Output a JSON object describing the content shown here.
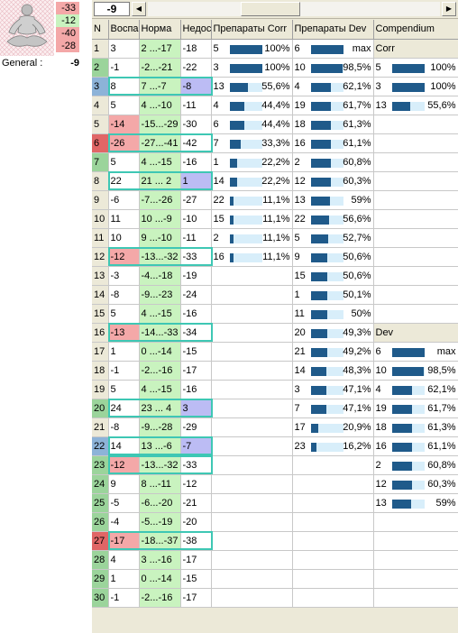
{
  "left_panel": {
    "scores": [
      "-33",
      "-12",
      "-40",
      "-28"
    ],
    "general_label": "General :",
    "general_value": "-9"
  },
  "toolbar": {
    "value": "-9",
    "scroll_position": 0.4
  },
  "columns": [
    "N",
    "Воспа",
    "Норма",
    "Недос",
    "Препараты Corr",
    "Препараты Dev",
    "Compendium"
  ],
  "rows": [
    {
      "n": "1",
      "v": "3",
      "norma": "2 ...-17",
      "ned": "-18",
      "corr": {
        "n": "5",
        "pct": "100%",
        "val": 1.0
      },
      "dev": {
        "n": "6",
        "pct": "max",
        "val": 1.0
      },
      "comp": {
        "label": "Corr"
      }
    },
    {
      "n": "2",
      "v": "-1",
      "norma": "-2...-21",
      "ned": "-22",
      "corr": {
        "n": "3",
        "pct": "100%",
        "val": 1.0
      },
      "dev": {
        "n": "10",
        "pct": "98,5%",
        "val": 0.985
      },
      "comp": {
        "n": "5",
        "pct": "100%",
        "val": 1.0
      }
    },
    {
      "n": "3",
      "v": "8",
      "norma": "7 ...-7",
      "ned": "-8",
      "corr": {
        "n": "13",
        "pct": "55,6%",
        "val": 0.556
      },
      "dev": {
        "n": "4",
        "pct": "62,1%",
        "val": 0.621
      },
      "comp": {
        "n": "3",
        "pct": "100%",
        "val": 1.0
      }
    },
    {
      "n": "4",
      "v": "5",
      "norma": "4 ...-10",
      "ned": "-11",
      "corr": {
        "n": "4",
        "pct": "44,4%",
        "val": 0.444
      },
      "dev": {
        "n": "19",
        "pct": "61,7%",
        "val": 0.617
      },
      "comp": {
        "n": "13",
        "pct": "55,6%",
        "val": 0.556
      }
    },
    {
      "n": "5",
      "v": "-14",
      "norma": "-15...-29",
      "ned": "-30",
      "corr": {
        "n": "6",
        "pct": "44,4%",
        "val": 0.444
      },
      "dev": {
        "n": "18",
        "pct": "61,3%",
        "val": 0.613
      }
    },
    {
      "n": "6",
      "v": "-26",
      "norma": "-27...-41",
      "ned": "-42",
      "corr": {
        "n": "7",
        "pct": "33,3%",
        "val": 0.333
      },
      "dev": {
        "n": "16",
        "pct": "61,1%",
        "val": 0.611
      }
    },
    {
      "n": "7",
      "v": "5",
      "norma": "4 ...-15",
      "ned": "-16",
      "corr": {
        "n": "1",
        "pct": "22,2%",
        "val": 0.222
      },
      "dev": {
        "n": "2",
        "pct": "60,8%",
        "val": 0.608
      }
    },
    {
      "n": "8",
      "v": "22",
      "norma": "21 ... 2",
      "ned": "1",
      "corr": {
        "n": "14",
        "pct": "22,2%",
        "val": 0.222
      },
      "dev": {
        "n": "12",
        "pct": "60,3%",
        "val": 0.603
      }
    },
    {
      "n": "9",
      "v": "-6",
      "norma": "-7...-26",
      "ned": "-27",
      "corr": {
        "n": "22",
        "pct": "11,1%",
        "val": 0.111
      },
      "dev": {
        "n": "13",
        "pct": "59%",
        "val": 0.59
      }
    },
    {
      "n": "10",
      "v": "11",
      "norma": "10 ...-9",
      "ned": "-10",
      "corr": {
        "n": "15",
        "pct": "11,1%",
        "val": 0.111
      },
      "dev": {
        "n": "22",
        "pct": "56,6%",
        "val": 0.566
      }
    },
    {
      "n": "11",
      "v": "10",
      "norma": "9 ...-10",
      "ned": "-11",
      "corr": {
        "n": "2",
        "pct": "11,1%",
        "val": 0.111
      },
      "dev": {
        "n": "5",
        "pct": "52,7%",
        "val": 0.527
      }
    },
    {
      "n": "12",
      "v": "-12",
      "norma": "-13...-32",
      "ned": "-33",
      "corr": {
        "n": "16",
        "pct": "11,1%",
        "val": 0.111
      },
      "dev": {
        "n": "9",
        "pct": "50,6%",
        "val": 0.506
      }
    },
    {
      "n": "13",
      "v": "-3",
      "norma": "-4...-18",
      "ned": "-19",
      "dev": {
        "n": "15",
        "pct": "50,6%",
        "val": 0.506
      }
    },
    {
      "n": "14",
      "v": "-8",
      "norma": "-9...-23",
      "ned": "-24",
      "dev": {
        "n": "1",
        "pct": "50,1%",
        "val": 0.501
      }
    },
    {
      "n": "15",
      "v": "5",
      "norma": "4 ...-15",
      "ned": "-16",
      "dev": {
        "n": "11",
        "pct": "50%",
        "val": 0.5
      }
    },
    {
      "n": "16",
      "v": "-13",
      "norma": "-14...-33",
      "ned": "-34",
      "dev": {
        "n": "20",
        "pct": "49,3%",
        "val": 0.493
      },
      "comp": {
        "label": "Dev"
      }
    },
    {
      "n": "17",
      "v": "1",
      "norma": "0 ...-14",
      "ned": "-15",
      "dev": {
        "n": "21",
        "pct": "49,2%",
        "val": 0.492
      },
      "comp": {
        "n": "6",
        "pct": "max",
        "val": 1.0
      }
    },
    {
      "n": "18",
      "v": "-1",
      "norma": "-2...-16",
      "ned": "-17",
      "dev": {
        "n": "14",
        "pct": "48,3%",
        "val": 0.483
      },
      "comp": {
        "n": "10",
        "pct": "98,5%",
        "val": 0.985
      }
    },
    {
      "n": "19",
      "v": "5",
      "norma": "4 ...-15",
      "ned": "-16",
      "dev": {
        "n": "3",
        "pct": "47,1%",
        "val": 0.471
      },
      "comp": {
        "n": "4",
        "pct": "62,1%",
        "val": 0.621
      }
    },
    {
      "n": "20",
      "v": "24",
      "norma": "23 ... 4",
      "ned": "3",
      "dev": {
        "n": "7",
        "pct": "47,1%",
        "val": 0.471
      },
      "comp": {
        "n": "19",
        "pct": "61,7%",
        "val": 0.617
      }
    },
    {
      "n": "21",
      "v": "-8",
      "norma": "-9...-28",
      "ned": "-29",
      "dev": {
        "n": "17",
        "pct": "20,9%",
        "val": 0.209
      },
      "comp": {
        "n": "18",
        "pct": "61,3%",
        "val": 0.613
      }
    },
    {
      "n": "22",
      "v": "14",
      "norma": "13 ...-6",
      "ned": "-7",
      "dev": {
        "n": "23",
        "pct": "16,2%",
        "val": 0.162
      },
      "comp": {
        "n": "16",
        "pct": "61,1%",
        "val": 0.611
      }
    },
    {
      "n": "23",
      "v": "-12",
      "norma": "-13...-32",
      "ned": "-33",
      "comp": {
        "n": "2",
        "pct": "60,8%",
        "val": 0.608
      }
    },
    {
      "n": "24",
      "v": "9",
      "norma": "8 ...-11",
      "ned": "-12",
      "comp": {
        "n": "12",
        "pct": "60,3%",
        "val": 0.603
      }
    },
    {
      "n": "25",
      "v": "-5",
      "norma": "-6...-20",
      "ned": "-21",
      "comp": {
        "n": "13",
        "pct": "59%",
        "val": 0.59
      }
    },
    {
      "n": "26",
      "v": "-4",
      "norma": "-5...-19",
      "ned": "-20"
    },
    {
      "n": "27",
      "v": "-17",
      "norma": "-18...-37",
      "ned": "-38"
    },
    {
      "n": "28",
      "v": "4",
      "norma": "3 ...-16",
      "ned": "-17"
    },
    {
      "n": "29",
      "v": "1",
      "norma": "0 ...-14",
      "ned": "-15"
    },
    {
      "n": "30",
      "v": "-1",
      "norma": "-2...-16",
      "ned": "-17"
    }
  ],
  "colors": {
    "n_green": "#9bd49b",
    "n_blue": "#8db3d8",
    "n_red": "#e06666",
    "norma_green": "#c9f3bf",
    "red_cell": "#f4a8a8",
    "blue_cell": "#bcbcf4",
    "bar": "#1f5a8a",
    "bar_bg": "#d8eefa",
    "highlight": "#3ec7b4"
  }
}
